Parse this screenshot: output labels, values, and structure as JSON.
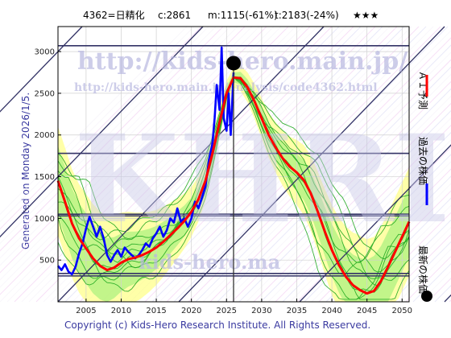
{
  "header": {
    "code": "4362=日精化",
    "current": "c:2861",
    "low": "m:1115(-61%)",
    "target": "t:2183(-24%)",
    "rating": "★★★"
  },
  "side": {
    "generated": "Generated on Monday 2026/1/5."
  },
  "footer": {
    "copyright": "Copyright (c) Kids-Hero Research Institute. All Rights Reserved."
  },
  "watermarks": {
    "site": "http://kids-hero.main.jp/",
    "page": "http://kids-hero.main.jp/analysis/code4362.html",
    "short": "kids-hero.ma",
    "logo": "KHRI"
  },
  "legend": {
    "forecast": "ＡＩ予測",
    "past": "過去の株価",
    "latest": "最新の株価"
  },
  "colors": {
    "forecast": "#ff0000",
    "past": "#0000ff",
    "latest": "#000000",
    "scenarios": "#22aa22",
    "band_yellow": "#ffff99",
    "band_green": "#99ee77",
    "guide": "#333366"
  },
  "chart_data": {
    "type": "line",
    "xlim": [
      2001,
      2051
    ],
    "ylim": [
      0,
      3300
    ],
    "xticks": [
      2005,
      2010,
      2015,
      2020,
      2025,
      2030,
      2035,
      2040,
      2045,
      2050
    ],
    "yticks": [
      500,
      1000,
      1500,
      2000,
      2500,
      3000
    ],
    "grid": true,
    "horizontal_levels": [
      3070,
      1780,
      1050,
      1030,
      340,
      310
    ],
    "vertical_marker_x": 2026.0,
    "current_point": {
      "x": 2026.0,
      "y": 2861
    },
    "series": [
      {
        "role": "past",
        "x": [
          2001,
          2001.5,
          2002,
          2002.5,
          2003,
          2003.5,
          2004,
          2004.5,
          2005,
          2005.5,
          2006,
          2006.5,
          2007,
          2007.5,
          2008,
          2008.5,
          2009,
          2009.5,
          2010,
          2010.5,
          2011,
          2011.5,
          2012,
          2012.5,
          2013,
          2013.5,
          2014,
          2014.5,
          2015,
          2015.5,
          2016,
          2016.5,
          2017,
          2017.5,
          2018,
          2018.5,
          2019,
          2019.5,
          2020,
          2020.5,
          2021,
          2021.5,
          2022,
          2022.5,
          2023,
          2023.3,
          2023.6,
          2024,
          2024.3,
          2024.6,
          2025,
          2025.3,
          2025.6,
          2026
        ],
        "y": [
          430,
          380,
          450,
          360,
          330,
          420,
          580,
          700,
          880,
          1020,
          900,
          780,
          900,
          760,
          560,
          480,
          560,
          620,
          540,
          650,
          600,
          560,
          520,
          560,
          620,
          700,
          660,
          760,
          820,
          900,
          780,
          860,
          1000,
          950,
          1120,
          960,
          1000,
          900,
          1000,
          1200,
          1120,
          1250,
          1380,
          1700,
          1900,
          2200,
          2600,
          2300,
          3050,
          2200,
          2050,
          2500,
          2000,
          2750
        ]
      },
      {
        "role": "forecast",
        "x": [
          2001,
          2002,
          2003,
          2004,
          2005,
          2006,
          2007,
          2008,
          2009,
          2010,
          2011,
          2012,
          2013,
          2014,
          2015,
          2016,
          2017,
          2018,
          2019,
          2020,
          2021,
          2022,
          2023,
          2024,
          2025,
          2026,
          2027,
          2028,
          2029,
          2030,
          2031,
          2032,
          2033,
          2034,
          2035,
          2036,
          2037,
          2038,
          2039,
          2040,
          2041,
          2042,
          2043,
          2044,
          2045,
          2046,
          2047,
          2048,
          2049,
          2050,
          2051
        ],
        "y": [
          1450,
          1200,
          940,
          760,
          640,
          520,
          430,
          380,
          410,
          470,
          510,
          530,
          560,
          600,
          650,
          720,
          800,
          880,
          970,
          1080,
          1230,
          1450,
          1780,
          2150,
          2500,
          2690,
          2680,
          2570,
          2400,
          2200,
          2000,
          1850,
          1720,
          1620,
          1550,
          1460,
          1300,
          1080,
          840,
          620,
          440,
          300,
          200,
          140,
          100,
          130,
          250,
          420,
          600,
          780,
          960
        ]
      }
    ]
  }
}
